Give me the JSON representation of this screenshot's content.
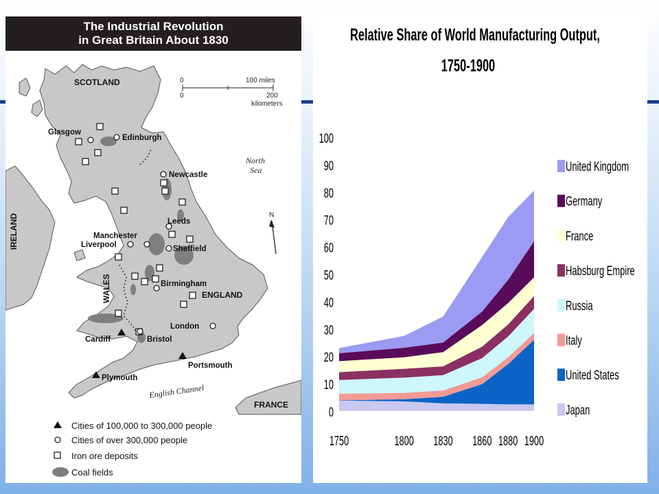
{
  "map": {
    "title_line1": "The Industrial Revolution",
    "title_line2": "in Great Britain About 1830",
    "scale": {
      "zero_top": "0",
      "miles": "100 miles",
      "zero_bottom": "0",
      "km_value": "200",
      "km_unit": "kilometers"
    },
    "regions": {
      "scotland": "SCOTLAND",
      "england": "ENGLAND",
      "wales": "WALES",
      "ireland": "IRELAND",
      "france": "FRANCE"
    },
    "seas": {
      "north_sea_1": "North",
      "north_sea_2": "Sea",
      "channel": "English Channel"
    },
    "north_arrow": "N",
    "cities": {
      "glasgow": "Glasgow",
      "edinburgh": "Edinburgh",
      "newcastle": "Newcastle",
      "leeds": "Leeds",
      "manchester": "Manchester",
      "liverpool": "Liverpool",
      "sheffield": "Sheffield",
      "birmingham": "Birmingham",
      "london": "London",
      "cardiff": "Cardiff",
      "bristol": "Bristol",
      "portsmouth": "Portsmouth",
      "plymouth": "Plymouth"
    },
    "legend": [
      {
        "symbol": "triangle",
        "label": "Cities of 100,000 to 300,000 people"
      },
      {
        "symbol": "circle",
        "label": "Cities of over 300,000 people"
      },
      {
        "symbol": "square",
        "label": "Iron ore deposits"
      },
      {
        "symbol": "blob",
        "label": "Coal fields"
      }
    ]
  },
  "chart_data": {
    "type": "area",
    "stacked": true,
    "title": "Relative Share of World Manufacturing Output,",
    "subtitle": "1750-1900",
    "x": [
      1750,
      1800,
      1830,
      1860,
      1880,
      1900
    ],
    "x_tick_labels": [
      "1750",
      "1800",
      "1830",
      "1860",
      "1880",
      "1900"
    ],
    "ylim": [
      0,
      100
    ],
    "y_ticks": [
      0,
      10,
      20,
      30,
      40,
      50,
      60,
      70,
      80,
      90,
      100
    ],
    "legend_position": "right",
    "series": [
      {
        "name": "Japan",
        "color": "#c8c8f0",
        "values": [
          3.8,
          3.5,
          2.8,
          2.6,
          2.4,
          2.4
        ]
      },
      {
        "name": "United States",
        "color": "#0b63c5",
        "values": [
          0.1,
          0.8,
          2.4,
          7.2,
          14.7,
          23.6
        ]
      },
      {
        "name": "Italy",
        "color": "#f29a96",
        "values": [
          2.4,
          2.3,
          2.3,
          2.5,
          2.5,
          2.5
        ]
      },
      {
        "name": "Russia",
        "color": "#cdf7fb",
        "values": [
          5.0,
          5.6,
          5.6,
          7.0,
          7.6,
          8.8
        ]
      },
      {
        "name": "Habsburg Empire",
        "color": "#8b3062",
        "values": [
          2.9,
          3.2,
          3.2,
          4.2,
          4.4,
          4.7
        ]
      },
      {
        "name": "France",
        "color": "#ffffd2",
        "values": [
          4.0,
          4.2,
          5.2,
          7.9,
          7.8,
          6.8
        ]
      },
      {
        "name": "Germany",
        "color": "#5a0a5a",
        "values": [
          2.9,
          3.5,
          3.5,
          4.9,
          8.5,
          13.2
        ]
      },
      {
        "name": "United Kingdom",
        "color": "#9b9bf4",
        "values": [
          1.9,
          4.3,
          9.5,
          19.9,
          22.9,
          18.5
        ]
      }
    ],
    "legend_order": [
      "United Kingdom",
      "Germany",
      "France",
      "Habsburg Empire",
      "Russia",
      "Italy",
      "United States",
      "Japan"
    ]
  }
}
